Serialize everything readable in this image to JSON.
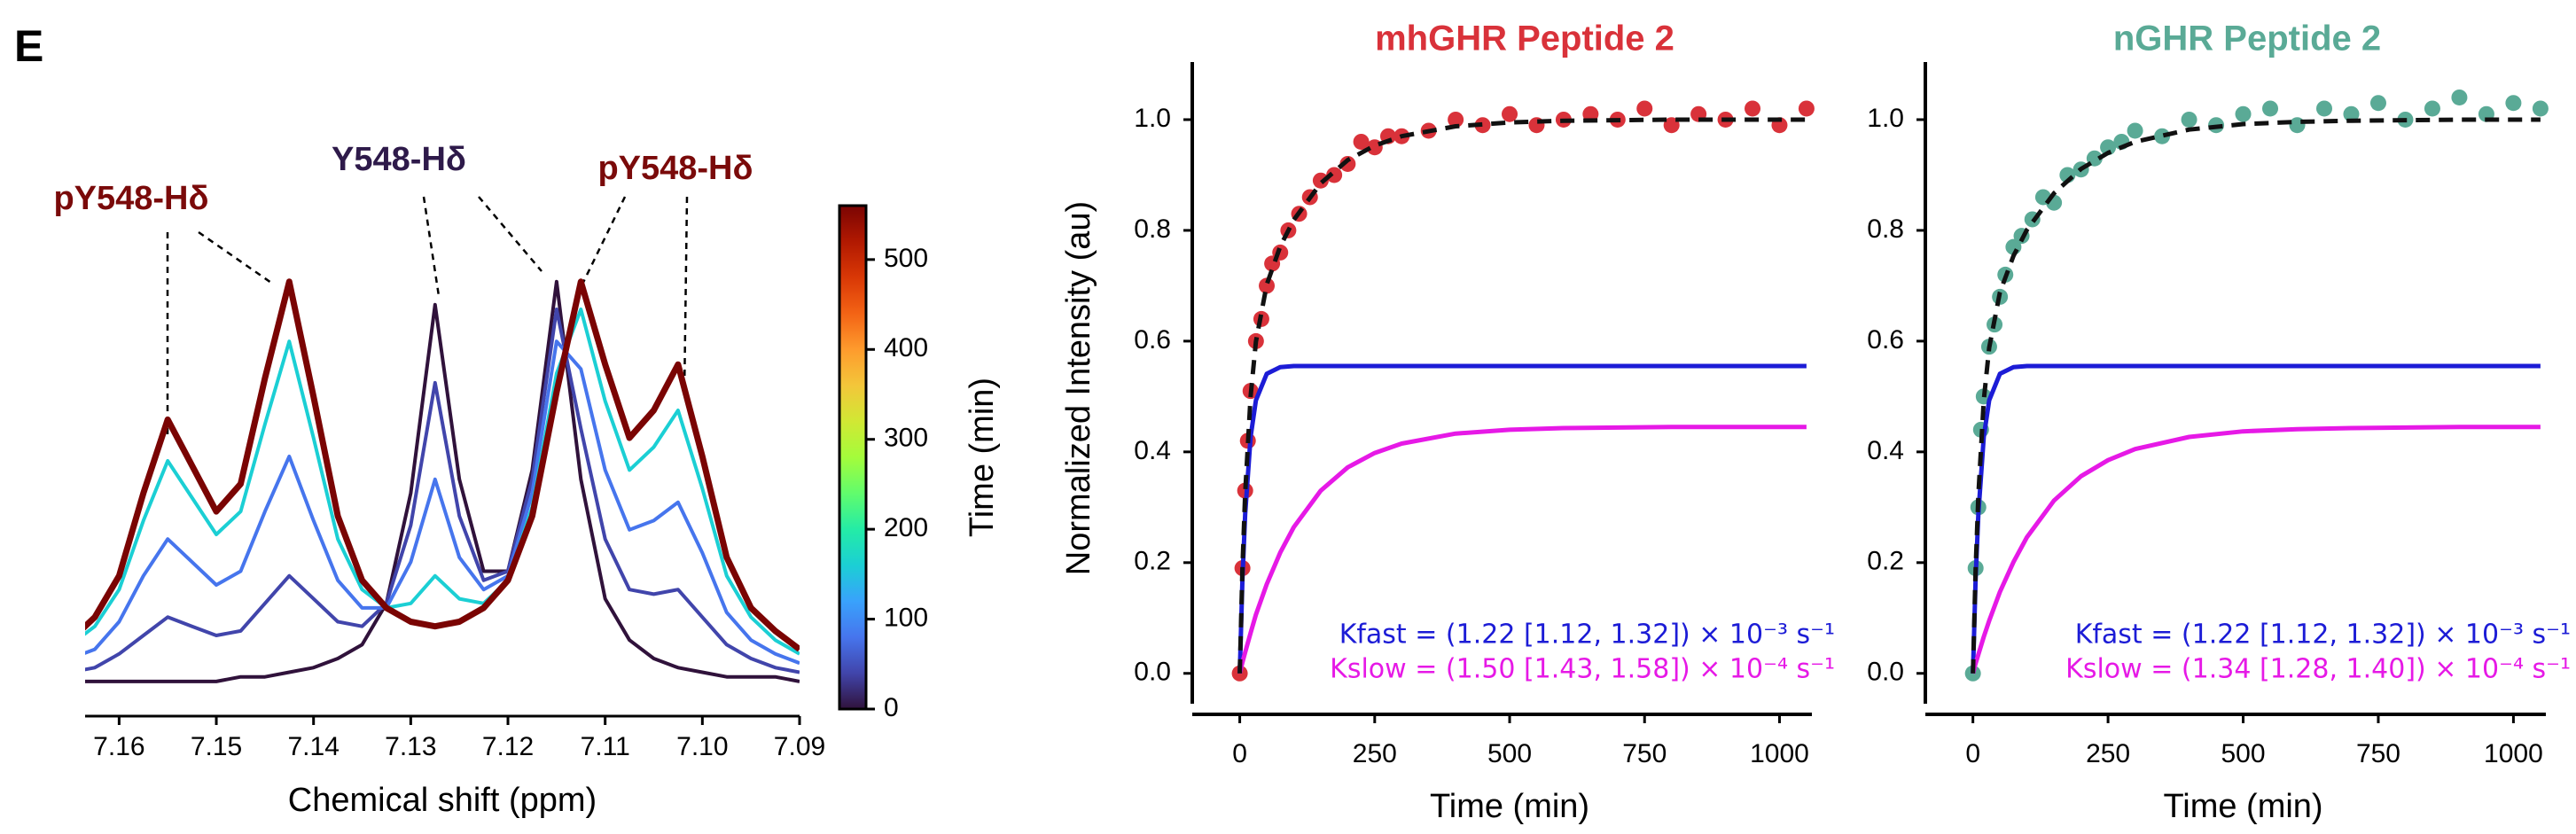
{
  "panel_label": "E",
  "chart_data": [
    {
      "type": "line",
      "x": [
        7.165,
        7.1625,
        7.16,
        7.1575,
        7.155,
        7.1525,
        7.15,
        7.1475,
        7.145,
        7.1425,
        7.14,
        7.1375,
        7.135,
        7.1325,
        7.13,
        7.1275,
        7.125,
        7.1225,
        7.12,
        7.1175,
        7.115,
        7.1125,
        7.11,
        7.1075,
        7.105,
        7.1025,
        7.1,
        7.0975,
        7.095,
        7.0925,
        7.09
      ],
      "xlabel": "Chemical shift (ppm)",
      "xlim": [
        7.1635,
        7.09
      ],
      "xticks": [
        7.16,
        7.15,
        7.14,
        7.13,
        7.12,
        7.11,
        {
          "value": 7.1,
          "label": "7.10"
        },
        7.09
      ],
      "ylim": [
        -0.03,
        1.0
      ],
      "series": [
        {
          "color": "#30123b",
          "values": [
            0.03,
            0.03,
            0.03,
            0.03,
            0.03,
            0.03,
            0.03,
            0.04,
            0.04,
            0.05,
            0.06,
            0.08,
            0.11,
            0.2,
            0.44,
            0.85,
            0.47,
            0.27,
            0.27,
            0.49,
            0.9,
            0.47,
            0.21,
            0.12,
            0.08,
            0.06,
            0.05,
            0.04,
            0.04,
            0.04,
            0.03
          ]
        },
        {
          "color": "#4145ab",
          "values": [
            0.05,
            0.06,
            0.09,
            0.13,
            0.17,
            0.15,
            0.13,
            0.14,
            0.2,
            0.26,
            0.21,
            0.16,
            0.15,
            0.2,
            0.37,
            0.68,
            0.39,
            0.25,
            0.27,
            0.47,
            0.84,
            0.58,
            0.34,
            0.23,
            0.22,
            0.23,
            0.17,
            0.11,
            0.08,
            0.06,
            0.05
          ]
        },
        {
          "color": "#4675ed",
          "values": [
            0.08,
            0.1,
            0.16,
            0.26,
            0.34,
            0.29,
            0.24,
            0.27,
            0.4,
            0.52,
            0.38,
            0.25,
            0.19,
            0.19,
            0.29,
            0.47,
            0.3,
            0.23,
            0.26,
            0.44,
            0.77,
            0.71,
            0.49,
            0.36,
            0.38,
            0.42,
            0.31,
            0.18,
            0.12,
            0.09,
            0.07
          ]
        },
        {
          "color": "#1bcfd4",
          "values": [
            0.11,
            0.15,
            0.23,
            0.38,
            0.51,
            0.43,
            0.35,
            0.4,
            0.59,
            0.77,
            0.56,
            0.34,
            0.23,
            0.19,
            0.2,
            0.26,
            0.21,
            0.2,
            0.25,
            0.41,
            0.7,
            0.84,
            0.64,
            0.49,
            0.54,
            0.62,
            0.45,
            0.26,
            0.17,
            0.12,
            0.09
          ]
        },
        {
          "color": "#7a0403",
          "values": [
            0.12,
            0.17,
            0.26,
            0.44,
            0.6,
            0.5,
            0.4,
            0.46,
            0.69,
            0.9,
            0.65,
            0.39,
            0.25,
            0.19,
            0.16,
            0.15,
            0.16,
            0.19,
            0.25,
            0.39,
            0.66,
            0.9,
            0.72,
            0.56,
            0.62,
            0.72,
            0.52,
            0.3,
            0.19,
            0.14,
            0.1
          ]
        }
      ],
      "annotations": [
        {
          "text": "pY548-Hδ",
          "color": "#7a0a0a"
        },
        {
          "text": "Y548-Hδ",
          "color": "#2e1a4a"
        },
        {
          "text": "pY548-Hδ",
          "color": "#7a0a0a"
        }
      ],
      "colorbar": {
        "label": "Time (min)",
        "lim": [
          0,
          560
        ],
        "ticks": [
          0,
          100,
          200,
          300,
          400,
          500
        ],
        "colors": [
          "#30123b",
          "#4145ab",
          "#4675ed",
          "#39a2fc",
          "#1bcfd4",
          "#24eca6",
          "#61fc6c",
          "#a4fc3b",
          "#d1e834",
          "#f3c63a",
          "#fe9b2d",
          "#f36315",
          "#d93806",
          "#b11901",
          "#7a0403"
        ]
      }
    },
    {
      "type": "scatter",
      "title": "mhGHR Peptide 2",
      "title_color": "#d9323a",
      "xlabel": "Time (min)",
      "ylabel": "Normalized Intensity (au)",
      "xlim": [
        -88,
        1060
      ],
      "ylim": [
        -0.074,
        1.104
      ],
      "xticks": [
        0,
        250,
        500,
        750,
        1000
      ],
      "yticks": [
        {
          "value": 0,
          "label": "0.0"
        },
        0.2,
        0.4,
        0.6,
        0.8,
        {
          "value": 1,
          "label": "1.0"
        }
      ],
      "series": [
        {
          "kind": "scatter",
          "color": "#d9323a",
          "x": [
            0,
            5,
            10,
            15,
            20,
            30,
            40,
            50,
            60,
            75,
            90,
            110,
            130,
            150,
            175,
            200,
            225,
            250,
            275,
            300,
            350,
            400,
            450,
            500,
            550,
            600,
            650,
            700,
            750,
            800,
            850,
            900,
            950,
            1000,
            1050
          ],
          "values": [
            0,
            0.19,
            0.33,
            0.42,
            0.51,
            0.6,
            0.64,
            0.7,
            0.74,
            0.76,
            0.8,
            0.83,
            0.86,
            0.89,
            0.9,
            0.92,
            0.96,
            0.95,
            0.97,
            0.97,
            0.98,
            1.0,
            0.99,
            1.01,
            0.99,
            1.0,
            1.01,
            1.0,
            1.02,
            0.99,
            1.01,
            1.0,
            1.02,
            0.99,
            1.02
          ]
        },
        {
          "kind": "line",
          "color": "#1c1cd6",
          "x": [
            0,
            5,
            10,
            20,
            30,
            50,
            75,
            100,
            200,
            400,
            600,
            800,
            1050
          ],
          "values": [
            0,
            0.17,
            0.288,
            0.427,
            0.493,
            0.541,
            0.553,
            0.555,
            0.555,
            0.555,
            0.555,
            0.555,
            0.555
          ]
        },
        {
          "kind": "line",
          "color": "#e619e6",
          "x": [
            0,
            5,
            10,
            20,
            30,
            50,
            75,
            100,
            150,
            200,
            250,
            300,
            400,
            500,
            600,
            700,
            800,
            900,
            1050
          ],
          "values": [
            0,
            0.02,
            0.038,
            0.073,
            0.106,
            0.161,
            0.218,
            0.264,
            0.33,
            0.372,
            0.398,
            0.415,
            0.433,
            0.44,
            0.443,
            0.444,
            0.445,
            0.445,
            0.445
          ]
        },
        {
          "kind": "line",
          "dashed": true,
          "color": "#111111",
          "x": [
            0,
            5,
            10,
            20,
            30,
            50,
            75,
            100,
            150,
            200,
            250,
            300,
            400,
            500,
            600,
            700,
            800,
            1050
          ],
          "values": [
            0,
            0.19,
            0.326,
            0.5,
            0.599,
            0.702,
            0.771,
            0.819,
            0.885,
            0.927,
            0.953,
            0.97,
            0.988,
            0.995,
            0.998,
            0.999,
            1.0,
            1.0
          ]
        }
      ],
      "annotations": [
        {
          "text": "Kfast = (1.22 [1.12, 1.32]) × 10⁻³ s⁻¹",
          "color": "#1c1cd6"
        },
        {
          "text": "Kslow = (1.50 [1.43, 1.58]) × 10⁻⁴ s⁻¹",
          "color": "#e619e6"
        }
      ]
    },
    {
      "type": "scatter",
      "title": "nGHR Peptide 2",
      "title_color": "#5aaa96",
      "xlabel": "Time (min)",
      "xlim": [
        -88,
        1060
      ],
      "ylim": [
        -0.074,
        1.104
      ],
      "xticks": [
        0,
        250,
        500,
        750,
        1000
      ],
      "yticks": [
        {
          "value": 0,
          "label": "0.0"
        },
        0.2,
        0.4,
        0.6,
        0.8,
        {
          "value": 1,
          "label": "1.0"
        }
      ],
      "series": [
        {
          "kind": "scatter",
          "color": "#5aaa96",
          "x": [
            0,
            5,
            10,
            15,
            20,
            30,
            40,
            50,
            60,
            75,
            90,
            110,
            130,
            150,
            175,
            200,
            225,
            250,
            275,
            300,
            350,
            400,
            450,
            500,
            550,
            600,
            650,
            700,
            750,
            800,
            850,
            900,
            950,
            1000,
            1050
          ],
          "values": [
            0,
            0.19,
            0.3,
            0.44,
            0.5,
            0.59,
            0.63,
            0.68,
            0.72,
            0.77,
            0.79,
            0.82,
            0.86,
            0.85,
            0.9,
            0.91,
            0.93,
            0.95,
            0.96,
            0.98,
            0.97,
            1.0,
            0.99,
            1.01,
            1.02,
            0.99,
            1.02,
            1.01,
            1.03,
            1.0,
            1.02,
            1.04,
            1.01,
            1.03,
            1.02
          ]
        },
        {
          "kind": "line",
          "color": "#1c1cd6",
          "x": [
            0,
            5,
            10,
            20,
            30,
            50,
            75,
            100,
            200,
            400,
            600,
            800,
            1050
          ],
          "values": [
            0,
            0.17,
            0.288,
            0.427,
            0.493,
            0.541,
            0.553,
            0.555,
            0.555,
            0.555,
            0.555,
            0.555,
            0.555
          ]
        },
        {
          "kind": "line",
          "color": "#e619e6",
          "x": [
            0,
            5,
            10,
            20,
            30,
            50,
            75,
            100,
            150,
            200,
            250,
            300,
            400,
            500,
            600,
            700,
            800,
            900,
            1050
          ],
          "values": [
            0,
            0.018,
            0.034,
            0.066,
            0.095,
            0.147,
            0.201,
            0.246,
            0.312,
            0.356,
            0.385,
            0.405,
            0.427,
            0.437,
            0.441,
            0.443,
            0.444,
            0.445,
            0.445
          ]
        },
        {
          "kind": "line",
          "dashed": true,
          "color": "#111111",
          "x": [
            0,
            5,
            10,
            20,
            30,
            50,
            75,
            100,
            150,
            200,
            250,
            300,
            400,
            500,
            600,
            700,
            800,
            900,
            1050
          ],
          "values": [
            0,
            0.188,
            0.322,
            0.493,
            0.588,
            0.688,
            0.754,
            0.801,
            0.867,
            0.911,
            0.94,
            0.96,
            0.982,
            0.992,
            0.996,
            0.998,
            0.999,
            1.0,
            1.0
          ]
        }
      ],
      "annotations": [
        {
          "text": "Kfast = (1.22 [1.12, 1.32]) × 10⁻³ s⁻¹",
          "color": "#1c1cd6"
        },
        {
          "text": "Kslow = (1.34 [1.28, 1.40]) × 10⁻⁴ s⁻¹",
          "color": "#e619e6"
        }
      ]
    }
  ]
}
